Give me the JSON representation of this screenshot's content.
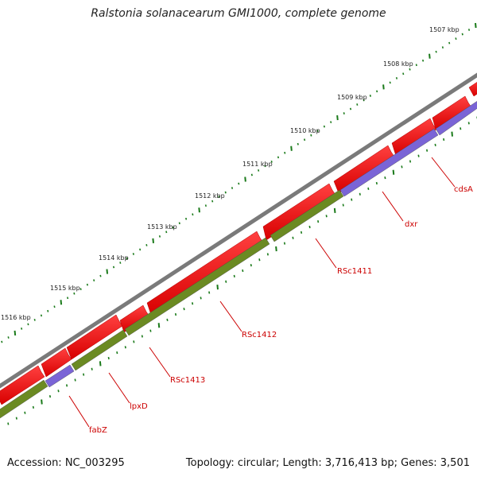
{
  "title": "Ralstonia solanacearum GMI1000, complete genome",
  "footer": {
    "accession": "Accession: NC_003295",
    "summary": "Topology: circular; Length: 3,716,413 bp; Genes: 3,501"
  },
  "ruler": {
    "ticks": [
      "1507 kbp",
      "1508 kbp",
      "1509 kbp",
      "1510 kbp",
      "1511 kbp",
      "1512 kbp",
      "1513 kbp",
      "1514 kbp",
      "1515 kbp",
      "1516 kbp"
    ]
  },
  "genes": [
    {
      "name": "cdsA"
    },
    {
      "name": "dxr"
    },
    {
      "name": "RSc1411"
    },
    {
      "name": "RSc1412"
    },
    {
      "name": "RSc1413"
    },
    {
      "name": "lpxD"
    },
    {
      "name": "fabZ"
    }
  ],
  "colors": {
    "cds": "#ff0000",
    "gene_blue": "#7a64d6",
    "gene_green": "#6b8a22",
    "backbone": "#808080",
    "ticks": "#1a7a1a",
    "labels": "#cc0000"
  }
}
